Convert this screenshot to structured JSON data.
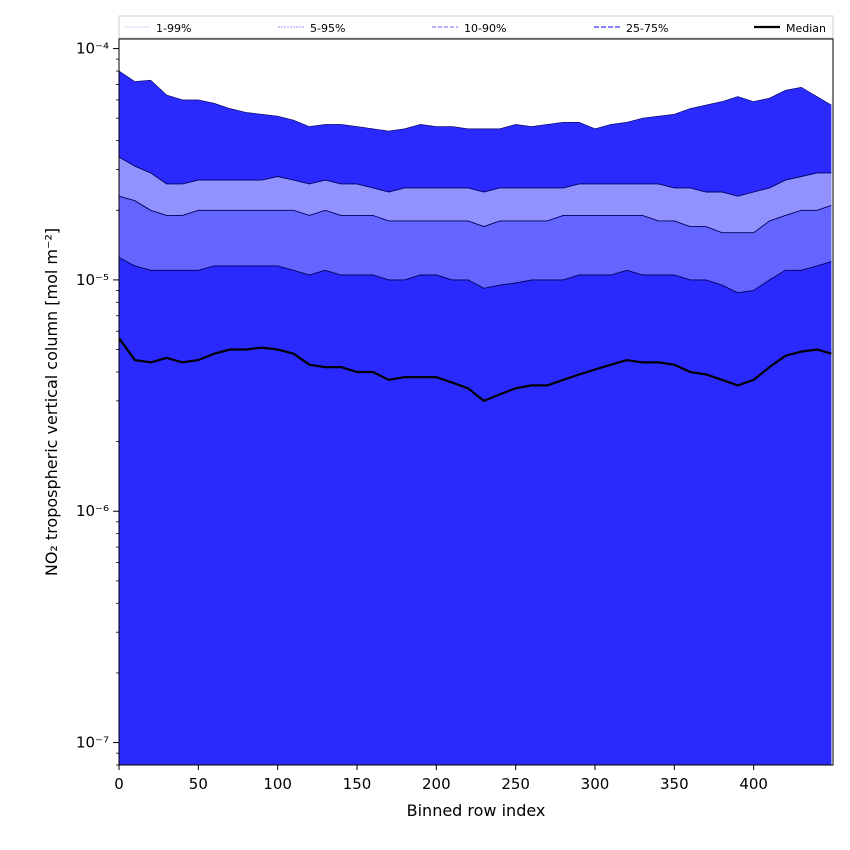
{
  "chart_data": {
    "type": "area",
    "xlabel": "Binned row index",
    "ylabel": "NO₂ tropospheric vertical column [mol m⁻²]",
    "xlim": [
      0,
      450
    ],
    "ylim": [
      8e-08,
      0.00011
    ],
    "y_scale": "log",
    "grid": false,
    "legend_position": "top",
    "x_ticks": [
      0,
      50,
      100,
      150,
      200,
      250,
      300,
      350,
      400
    ],
    "y_ticks": [
      {
        "value": 1e-07,
        "label": "10⁻⁷"
      },
      {
        "value": 1e-06,
        "label": "10⁻⁶"
      },
      {
        "value": 1e-05,
        "label": "10⁻⁵"
      },
      {
        "value": 0.0001,
        "label": "10⁻⁴"
      }
    ],
    "x": [
      0,
      10,
      20,
      30,
      40,
      50,
      60,
      70,
      80,
      90,
      100,
      110,
      120,
      130,
      140,
      150,
      160,
      170,
      180,
      190,
      200,
      210,
      220,
      230,
      240,
      250,
      260,
      270,
      280,
      290,
      300,
      310,
      320,
      330,
      340,
      350,
      360,
      370,
      380,
      390,
      400,
      410,
      420,
      430,
      440,
      449
    ],
    "legend": [
      "1-99%",
      "5-95%",
      "10-90%",
      "25-75%",
      "Median"
    ],
    "bands": [
      {
        "name": "1-99%",
        "color": "#2a2aff",
        "lower": [
          8e-08,
          8e-08,
          8e-08,
          8e-08,
          8e-08,
          8e-08,
          8e-08,
          8e-08,
          8e-08,
          8e-08,
          8e-08,
          8e-08,
          8e-08,
          8e-08,
          8e-08,
          8e-08,
          8e-08,
          8e-08,
          8e-08,
          8e-08,
          8e-08,
          8e-08,
          8e-08,
          8e-08,
          8e-08,
          8e-08,
          8e-08,
          8e-08,
          8e-08,
          8e-08,
          8e-08,
          8e-08,
          8e-08,
          8e-08,
          8e-08,
          8e-08,
          8e-08,
          8e-08,
          8e-08,
          8e-08,
          8e-08,
          8e-08,
          8e-08,
          8e-08,
          8e-08,
          8e-08
        ],
        "upper": [
          8e-05,
          7.2e-05,
          7.3e-05,
          6.3e-05,
          6e-05,
          6e-05,
          5.8e-05,
          5.5e-05,
          5.3e-05,
          5.2e-05,
          5.1e-05,
          4.9e-05,
          4.6e-05,
          4.7e-05,
          4.7e-05,
          4.6e-05,
          4.5e-05,
          4.4e-05,
          4.5e-05,
          4.7e-05,
          4.6e-05,
          4.6e-05,
          4.5e-05,
          4.5e-05,
          4.5e-05,
          4.7e-05,
          4.6e-05,
          4.7e-05,
          4.8e-05,
          4.8e-05,
          4.5e-05,
          4.7e-05,
          4.8e-05,
          5e-05,
          5.1e-05,
          5.2e-05,
          5.5e-05,
          5.7e-05,
          5.9e-05,
          6.2e-05,
          5.9e-05,
          6.1e-05,
          6.6e-05,
          6.8e-05,
          6.2e-05,
          5.7e-05
        ]
      },
      {
        "name": "5-95%",
        "color": "#9292ff",
        "lower": [
          8e-08,
          8e-08,
          8e-08,
          8e-08,
          8e-08,
          8e-08,
          8e-08,
          8e-08,
          8e-08,
          8e-08,
          8e-08,
          8e-08,
          8e-08,
          8e-08,
          8e-08,
          8e-08,
          8e-08,
          8e-08,
          8e-08,
          8e-08,
          8e-08,
          8e-08,
          8e-08,
          8e-08,
          8e-08,
          8e-08,
          8e-08,
          8e-08,
          8e-08,
          8e-08,
          8e-08,
          8e-08,
          8e-08,
          8e-08,
          8e-08,
          8e-08,
          8e-08,
          8e-08,
          8e-08,
          8e-08,
          8e-08,
          8e-08,
          8e-08,
          8e-08,
          8e-08,
          8e-08
        ],
        "upper": [
          3.4e-05,
          3.1e-05,
          2.9e-05,
          2.6e-05,
          2.6e-05,
          2.7e-05,
          2.7e-05,
          2.7e-05,
          2.7e-05,
          2.7e-05,
          2.8e-05,
          2.7e-05,
          2.6e-05,
          2.7e-05,
          2.6e-05,
          2.6e-05,
          2.5e-05,
          2.4e-05,
          2.5e-05,
          2.5e-05,
          2.5e-05,
          2.5e-05,
          2.5e-05,
          2.4e-05,
          2.5e-05,
          2.5e-05,
          2.5e-05,
          2.5e-05,
          2.5e-05,
          2.6e-05,
          2.6e-05,
          2.6e-05,
          2.6e-05,
          2.6e-05,
          2.6e-05,
          2.5e-05,
          2.5e-05,
          2.4e-05,
          2.4e-05,
          2.3e-05,
          2.4e-05,
          2.5e-05,
          2.7e-05,
          2.8e-05,
          2.9e-05,
          2.9e-05
        ]
      },
      {
        "name": "10-90%",
        "color": "#6464ff",
        "lower": [
          8e-08,
          8e-08,
          8e-08,
          8e-08,
          8e-08,
          8e-08,
          8e-08,
          8e-08,
          8e-08,
          8e-08,
          8e-08,
          8e-08,
          8e-08,
          8e-08,
          8e-08,
          8e-08,
          8e-08,
          8e-08,
          8e-08,
          8e-08,
          8e-08,
          8e-08,
          8e-08,
          8e-08,
          8e-08,
          8e-08,
          8e-08,
          8e-08,
          8e-08,
          8e-08,
          8e-08,
          8e-08,
          8e-08,
          8e-08,
          8e-08,
          8e-08,
          8e-08,
          8e-08,
          8e-08,
          8e-08,
          8e-08,
          8e-08,
          8e-08,
          8e-08,
          8e-08,
          8e-08
        ],
        "upper": [
          2.3e-05,
          2.2e-05,
          2e-05,
          1.9e-05,
          1.9e-05,
          2e-05,
          2e-05,
          2e-05,
          2e-05,
          2e-05,
          2e-05,
          2e-05,
          1.9e-05,
          2e-05,
          1.9e-05,
          1.9e-05,
          1.9e-05,
          1.8e-05,
          1.8e-05,
          1.8e-05,
          1.8e-05,
          1.8e-05,
          1.8e-05,
          1.7e-05,
          1.8e-05,
          1.8e-05,
          1.8e-05,
          1.8e-05,
          1.9e-05,
          1.9e-05,
          1.9e-05,
          1.9e-05,
          1.9e-05,
          1.9e-05,
          1.8e-05,
          1.8e-05,
          1.7e-05,
          1.7e-05,
          1.6e-05,
          1.6e-05,
          1.6e-05,
          1.8e-05,
          1.9e-05,
          2e-05,
          2e-05,
          2.1e-05
        ]
      },
      {
        "name": "25-75%",
        "color": "#2a2aff",
        "lower": [
          8e-08,
          8e-08,
          8e-08,
          8e-08,
          8e-08,
          8e-08,
          8e-08,
          8e-08,
          8e-08,
          8e-08,
          8e-08,
          8e-08,
          8e-08,
          8e-08,
          8e-08,
          8e-08,
          8e-08,
          8e-08,
          8e-08,
          8e-08,
          8e-08,
          8e-08,
          8e-08,
          8e-08,
          8e-08,
          8e-08,
          8e-08,
          8e-08,
          8e-08,
          8e-08,
          8e-08,
          8e-08,
          8e-08,
          8e-08,
          8e-08,
          8e-08,
          8e-08,
          8e-08,
          8e-08,
          8e-08,
          8e-08,
          8e-08,
          8e-08,
          8e-08,
          8e-08,
          8e-08
        ],
        "upper": [
          1.25e-05,
          1.15e-05,
          1.1e-05,
          1.1e-05,
          1.1e-05,
          1.1e-05,
          1.15e-05,
          1.15e-05,
          1.15e-05,
          1.15e-05,
          1.15e-05,
          1.1e-05,
          1.05e-05,
          1.1e-05,
          1.05e-05,
          1.05e-05,
          1.05e-05,
          1e-05,
          1e-05,
          1.05e-05,
          1.05e-05,
          1e-05,
          1e-05,
          9.2e-06,
          9.5e-06,
          9.7e-06,
          1e-05,
          1e-05,
          1e-05,
          1.05e-05,
          1.05e-05,
          1.05e-05,
          1.1e-05,
          1.05e-05,
          1.05e-05,
          1.05e-05,
          1e-05,
          1e-05,
          9.5e-06,
          8.8e-06,
          9e-06,
          1e-05,
          1.1e-05,
          1.1e-05,
          1.15e-05,
          1.2e-05
        ]
      }
    ],
    "series": [
      {
        "name": "Median",
        "color": "#000000",
        "values": [
          5.6e-06,
          4.5e-06,
          4.4e-06,
          4.6e-06,
          4.4e-06,
          4.5e-06,
          4.8e-06,
          5e-06,
          5e-06,
          5.1e-06,
          5e-06,
          4.8e-06,
          4.3e-06,
          4.2e-06,
          4.2e-06,
          4e-06,
          4e-06,
          3.7e-06,
          3.8e-06,
          3.8e-06,
          3.8e-06,
          3.6e-06,
          3.4e-06,
          3e-06,
          3.2e-06,
          3.4e-06,
          3.5e-06,
          3.5e-06,
          3.7e-06,
          3.9e-06,
          4.1e-06,
          4.3e-06,
          4.5e-06,
          4.4e-06,
          4.4e-06,
          4.3e-06,
          4e-06,
          3.9e-06,
          3.7e-06,
          3.5e-06,
          3.7e-06,
          4.2e-06,
          4.7e-06,
          4.9e-06,
          5e-06,
          4.8e-06
        ]
      }
    ]
  }
}
